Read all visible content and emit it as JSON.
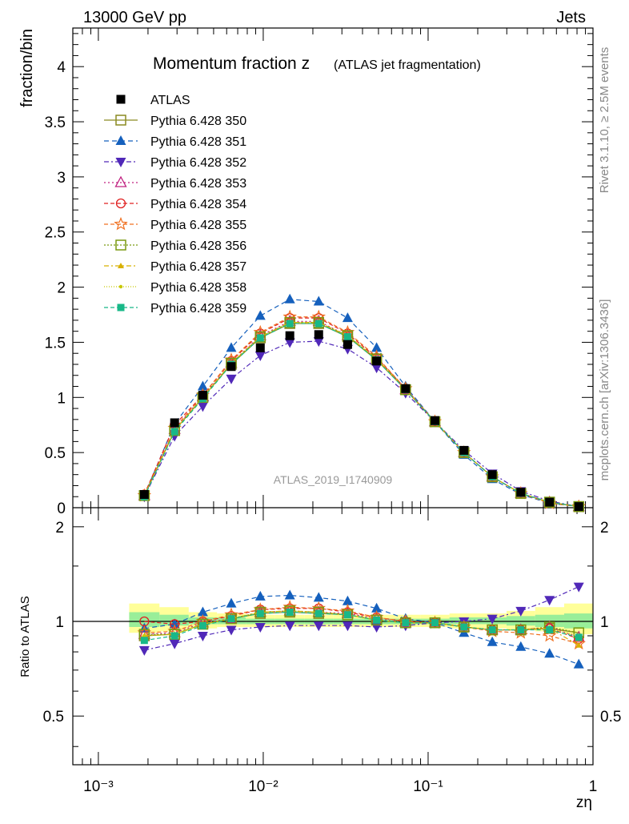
{
  "header": {
    "left": "13000 GeV pp",
    "right": "Jets"
  },
  "side_labels": {
    "rivet": "Rivet 3.1.10, ≥ 2.5M events",
    "mcplots": "mcplots.cern.ch [arXiv:1306.3436]"
  },
  "chart_data": {
    "type": "line",
    "title_main": "Momentum fraction z",
    "title_sub": "(ATLAS jet fragmentation)",
    "watermark": "ATLAS_2019_I1740909",
    "xlabel": "zη",
    "ylabel": "fraction/bin",
    "ratio_ylabel": "Ratio to ATLAS",
    "xscale": "log",
    "xlim": [
      0.0007,
      1.0
    ],
    "ylim": [
      0,
      4.35
    ],
    "ratio_ylim": [
      0.35,
      2.3
    ],
    "x_ticks": [
      "10⁻³",
      "10⁻²",
      "10⁻¹",
      "1"
    ],
    "y_ticks": [
      "0",
      "0.5",
      "1",
      "1.5",
      "2",
      "2.5",
      "3",
      "3.5",
      "4"
    ],
    "ratio_y_ticks": [
      "0.5",
      "1",
      "2"
    ],
    "legend_position": "top-left",
    "x": [
      0.0019,
      0.0029,
      0.0043,
      0.0064,
      0.0096,
      0.0145,
      0.0217,
      0.0325,
      0.0487,
      0.073,
      0.11,
      0.165,
      0.245,
      0.365,
      0.545,
      0.82
    ],
    "data": {
      "name": "ATLAS",
      "values": [
        0.12,
        0.77,
        1.02,
        1.28,
        1.45,
        1.56,
        1.57,
        1.48,
        1.33,
        1.08,
        0.79,
        0.52,
        0.3,
        0.14,
        0.05,
        0.01
      ]
    },
    "band_ratio_yellow": [
      [
        0.92,
        1.14
      ],
      [
        0.93,
        1.11
      ],
      [
        0.95,
        1.07
      ],
      [
        0.96,
        1.06
      ],
      [
        0.96,
        1.05
      ],
      [
        0.96,
        1.05
      ],
      [
        0.96,
        1.05
      ],
      [
        0.96,
        1.05
      ],
      [
        0.96,
        1.05
      ],
      [
        0.96,
        1.05
      ],
      [
        0.96,
        1.05
      ],
      [
        0.95,
        1.06
      ],
      [
        0.95,
        1.06
      ],
      [
        0.94,
        1.08
      ],
      [
        0.93,
        1.11
      ],
      [
        0.91,
        1.14
      ]
    ],
    "band_ratio_green": [
      [
        0.96,
        1.07
      ],
      [
        0.97,
        1.05
      ],
      [
        0.98,
        1.03
      ],
      [
        0.98,
        1.03
      ],
      [
        0.98,
        1.02
      ],
      [
        0.98,
        1.02
      ],
      [
        0.98,
        1.02
      ],
      [
        0.98,
        1.02
      ],
      [
        0.98,
        1.02
      ],
      [
        0.98,
        1.02
      ],
      [
        0.98,
        1.02
      ],
      [
        0.98,
        1.03
      ],
      [
        0.98,
        1.03
      ],
      [
        0.97,
        1.04
      ],
      [
        0.96,
        1.05
      ],
      [
        0.95,
        1.06
      ]
    ],
    "series": [
      {
        "name": "Pythia 6.428 350",
        "color": "#8a8a20",
        "marker": "square-open",
        "dash": "",
        "values": [
          0.11,
          0.7,
          1.0,
          1.3,
          1.54,
          1.67,
          1.67,
          1.55,
          1.34,
          1.07,
          0.78,
          0.5,
          0.28,
          0.13,
          0.05,
          0.01
        ]
      },
      {
        "name": "Pythia 6.428 351",
        "color": "#1560bd",
        "marker": "triangle-up",
        "dash": "6,4",
        "values": [
          0.11,
          0.76,
          1.1,
          1.45,
          1.74,
          1.89,
          1.87,
          1.72,
          1.45,
          1.1,
          0.78,
          0.48,
          0.26,
          0.12,
          0.04,
          0.01
        ]
      },
      {
        "name": "Pythia 6.428 352",
        "color": "#5028b8",
        "marker": "triangle-down",
        "dash": "6,3,2,3",
        "values": [
          0.1,
          0.65,
          0.92,
          1.17,
          1.38,
          1.5,
          1.51,
          1.44,
          1.27,
          1.04,
          0.78,
          0.52,
          0.31,
          0.15,
          0.06,
          0.01
        ]
      },
      {
        "name": "Pythia 6.428 353",
        "color": "#c02080",
        "marker": "triangle-open",
        "dash": "2,3",
        "values": [
          0.11,
          0.71,
          1.01,
          1.31,
          1.56,
          1.69,
          1.69,
          1.56,
          1.35,
          1.07,
          0.78,
          0.5,
          0.28,
          0.13,
          0.05,
          0.01
        ]
      },
      {
        "name": "Pythia 6.428 354",
        "color": "#e02020",
        "marker": "circle-open",
        "dash": "5,3",
        "values": [
          0.12,
          0.75,
          1.02,
          1.33,
          1.58,
          1.72,
          1.72,
          1.58,
          1.36,
          1.08,
          0.78,
          0.5,
          0.28,
          0.13,
          0.05,
          0.01
        ]
      },
      {
        "name": "Pythia 6.428 355",
        "color": "#f07020",
        "marker": "star-open",
        "dash": "5,3",
        "values": [
          0.11,
          0.72,
          1.02,
          1.34,
          1.59,
          1.73,
          1.73,
          1.59,
          1.37,
          1.08,
          0.78,
          0.5,
          0.28,
          0.13,
          0.04,
          0.01
        ]
      },
      {
        "name": "Pythia 6.428 356",
        "color": "#7a9a10",
        "marker": "square-open",
        "dash": "2,2",
        "values": [
          0.11,
          0.7,
          1.0,
          1.31,
          1.55,
          1.68,
          1.68,
          1.56,
          1.35,
          1.07,
          0.78,
          0.5,
          0.28,
          0.13,
          0.05,
          0.01
        ]
      },
      {
        "name": "Pythia 6.428 357",
        "color": "#d8b000",
        "marker": "triangle-small",
        "dash": "6,3,2,3",
        "values": [
          0.11,
          0.7,
          1.0,
          1.31,
          1.55,
          1.68,
          1.68,
          1.56,
          1.35,
          1.07,
          0.78,
          0.5,
          0.28,
          0.13,
          0.05,
          0.01
        ]
      },
      {
        "name": "Pythia 6.428 358",
        "color": "#c8c800",
        "marker": "dot",
        "dash": "1,2",
        "values": [
          0.11,
          0.7,
          1.0,
          1.31,
          1.55,
          1.68,
          1.68,
          1.56,
          1.35,
          1.07,
          0.78,
          0.5,
          0.28,
          0.13,
          0.05,
          0.01
        ]
      },
      {
        "name": "Pythia 6.428 359",
        "color": "#18b888",
        "marker": "square-filled",
        "dash": "5,3",
        "values": [
          0.1,
          0.69,
          0.99,
          1.3,
          1.54,
          1.67,
          1.67,
          1.55,
          1.34,
          1.07,
          0.78,
          0.5,
          0.28,
          0.13,
          0.05,
          0.01
        ]
      }
    ],
    "ratios": [
      [
        0.9,
        0.91,
        0.98,
        1.02,
        1.06,
        1.07,
        1.06,
        1.05,
        1.01,
        0.99,
        0.99,
        0.96,
        0.94,
        0.94,
        0.95,
        0.92
      ],
      [
        0.95,
        0.98,
        1.07,
        1.14,
        1.2,
        1.21,
        1.19,
        1.16,
        1.1,
        1.02,
        0.99,
        0.92,
        0.86,
        0.83,
        0.79,
        0.73
      ],
      [
        0.81,
        0.85,
        0.9,
        0.94,
        0.96,
        0.97,
        0.97,
        0.97,
        0.96,
        0.97,
        0.99,
        1.0,
        1.02,
        1.08,
        1.17,
        1.29
      ],
      [
        0.91,
        0.92,
        0.99,
        1.02,
        1.07,
        1.08,
        1.07,
        1.06,
        1.02,
        0.99,
        0.99,
        0.96,
        0.94,
        0.94,
        0.96,
        0.89
      ],
      [
        1.0,
        0.98,
        1.0,
        1.04,
        1.09,
        1.1,
        1.1,
        1.07,
        1.03,
        1.0,
        0.99,
        0.96,
        0.94,
        0.94,
        0.95,
        0.88
      ],
      [
        0.92,
        0.93,
        1.0,
        1.05,
        1.09,
        1.11,
        1.1,
        1.08,
        1.03,
        1.0,
        0.99,
        0.96,
        0.93,
        0.92,
        0.9,
        0.85
      ],
      [
        0.91,
        0.91,
        0.98,
        1.02,
        1.07,
        1.08,
        1.07,
        1.05,
        1.01,
        0.99,
        0.99,
        0.96,
        0.94,
        0.94,
        0.96,
        0.92
      ],
      [
        0.9,
        0.91,
        0.98,
        1.02,
        1.07,
        1.08,
        1.07,
        1.05,
        1.01,
        0.99,
        0.99,
        0.96,
        0.94,
        0.94,
        0.95,
        0.84
      ],
      [
        0.9,
        0.91,
        0.98,
        1.02,
        1.07,
        1.08,
        1.07,
        1.05,
        1.01,
        0.99,
        0.99,
        0.96,
        0.94,
        0.94,
        0.95,
        0.9
      ],
      [
        0.87,
        0.9,
        0.97,
        1.02,
        1.06,
        1.07,
        1.06,
        1.05,
        1.01,
        0.99,
        0.99,
        0.96,
        0.94,
        0.94,
        0.94,
        0.89
      ]
    ]
  }
}
